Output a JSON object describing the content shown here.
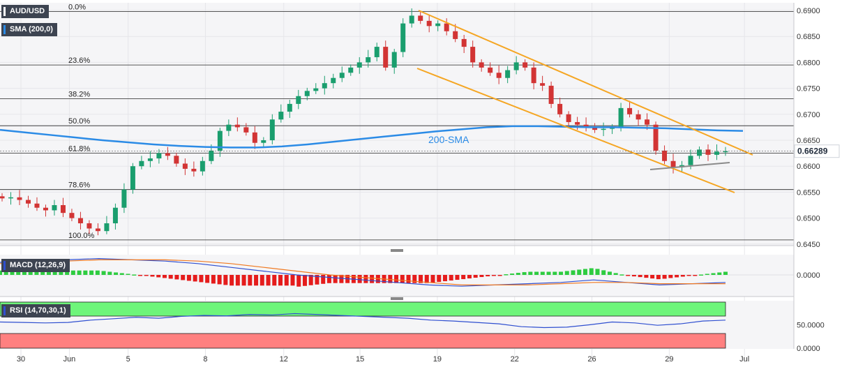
{
  "instrument": {
    "symbol": "AUD/USD",
    "price_label": "0.66289",
    "price_color": "#1f2a3a"
  },
  "indicators": {
    "sma": {
      "label": "SMA (200,0)",
      "color": "#2b8be6"
    },
    "macd": {
      "label": "MACD (12,26,9)",
      "color": "#2f4fd0"
    },
    "rsi": {
      "label": "RSI (14,70,30,1)",
      "color": "#2f4fd0"
    }
  },
  "colors": {
    "up": "#1a9e6e",
    "down": "#d23434",
    "channel": "#f5a623",
    "support": "#8a8a8a",
    "sma": "#2b8be6",
    "signal": "#f07a22",
    "hist_up": "#2ecc40",
    "hist_down": "#e51c1c",
    "overbought": "#6ef57a",
    "oversold": "#ff8080"
  },
  "chart_data": [
    {
      "type": "line",
      "panel": "price",
      "ylim": [
        0.645,
        0.6905
      ],
      "y_ticks": [
        "0.6900",
        "0.6850",
        "0.6800",
        "0.6750",
        "0.6700",
        "0.6650",
        "0.6600",
        "0.6550",
        "0.6500",
        "0.6450"
      ],
      "x_ticks": [
        "30",
        "Jun",
        "5",
        "8",
        "12",
        "15",
        "19",
        "22",
        "26",
        "29",
        "Jul"
      ],
      "fibonacci": [
        {
          "label": "0.0%",
          "value": 0.6898
        },
        {
          "label": "23.6%",
          "value": 0.6795
        },
        {
          "label": "38.2%",
          "value": 0.673
        },
        {
          "label": "50.0%",
          "value": 0.6678
        },
        {
          "label": "61.8%",
          "value": 0.6625
        },
        {
          "label": "78.6%",
          "value": 0.6555
        },
        {
          "label": "100.0%",
          "value": 0.6458
        }
      ],
      "annotation": "200-SMA",
      "current_price": 0.66289,
      "close_series": [
        0.6538,
        0.654,
        0.6535,
        0.6528,
        0.652,
        0.6515,
        0.6525,
        0.651,
        0.65,
        0.649,
        0.648,
        0.6475,
        0.649,
        0.652,
        0.6555,
        0.66,
        0.661,
        0.6615,
        0.6625,
        0.662,
        0.6605,
        0.6595,
        0.659,
        0.661,
        0.663,
        0.6668,
        0.668,
        0.6675,
        0.6665,
        0.6645,
        0.665,
        0.669,
        0.6705,
        0.672,
        0.6735,
        0.6745,
        0.675,
        0.676,
        0.677,
        0.678,
        0.679,
        0.68,
        0.681,
        0.683,
        0.679,
        0.682,
        0.6875,
        0.689,
        0.688,
        0.687,
        0.6875,
        0.686,
        0.6845,
        0.683,
        0.68,
        0.679,
        0.678,
        0.677,
        0.6785,
        0.68,
        0.679,
        0.676,
        0.6755,
        0.672,
        0.67,
        0.6685,
        0.668,
        0.6675,
        0.667,
        0.6672,
        0.6675,
        0.6712,
        0.67,
        0.669,
        0.668,
        0.663,
        0.661,
        0.6598,
        0.6602,
        0.662,
        0.6632,
        0.6622,
        0.6628,
        0.6629
      ],
      "sma200": [
        0.667,
        0.6665,
        0.666,
        0.6655,
        0.665,
        0.6646,
        0.6642,
        0.6639,
        0.6637,
        0.6636,
        0.6636,
        0.6638,
        0.6642,
        0.6647,
        0.6652,
        0.6657,
        0.6662,
        0.6667,
        0.6671,
        0.6675,
        0.6677,
        0.6677,
        0.6676,
        0.6675,
        0.6675,
        0.6674,
        0.6673,
        0.6671,
        0.6669,
        0.6668
      ],
      "channel_upper": [
        [
          0.6898,
          17.2
        ],
        [
          0.6632,
          30.3
        ]
      ],
      "channel_lower": [
        [
          0.6788,
          17.0
        ],
        [
          0.6552,
          30.3
        ]
      ],
      "support": [
        [
          0.6594,
          26.4
        ],
        [
          0.6606,
          30.1
        ]
      ]
    },
    {
      "type": "bar",
      "panel": "macd",
      "label": "MACD (12,26,9)",
      "y_ticks": [
        "0.0000"
      ],
      "macd_line": [
        0.001,
        0.0011,
        0.0012,
        0.0013,
        0.0012,
        0.0011,
        0.0009,
        0.0006,
        0.0003,
        0.0,
        -0.0002,
        -0.0004,
        -0.0006,
        -0.0008,
        -0.0009,
        -0.0008,
        -0.0007,
        -0.0006,
        -0.0004,
        -0.0006,
        -0.0008,
        -0.0007,
        -0.0006
      ],
      "signal_line": [
        0.0009,
        0.001,
        0.0011,
        0.0012,
        0.0012,
        0.0012,
        0.0011,
        0.0009,
        0.0006,
        0.0003,
        0.0,
        -0.0002,
        -0.0004,
        -0.0006,
        -0.0008,
        -0.0008,
        -0.0008,
        -0.0007,
        -0.0006,
        -0.0006,
        -0.0007,
        -0.0007,
        -0.0007
      ]
    },
    {
      "type": "line",
      "panel": "rsi",
      "label": "RSI (14,70,30,1)",
      "y_ticks": [
        "50.0000",
        "0.0000"
      ],
      "values": [
        56,
        55,
        54,
        55,
        60,
        63,
        66,
        64,
        68,
        70,
        69,
        72,
        71,
        74,
        72,
        70,
        68,
        66,
        64,
        60,
        58,
        55,
        52,
        46,
        44,
        45,
        50,
        56,
        54,
        49,
        52,
        58,
        60
      ]
    }
  ]
}
